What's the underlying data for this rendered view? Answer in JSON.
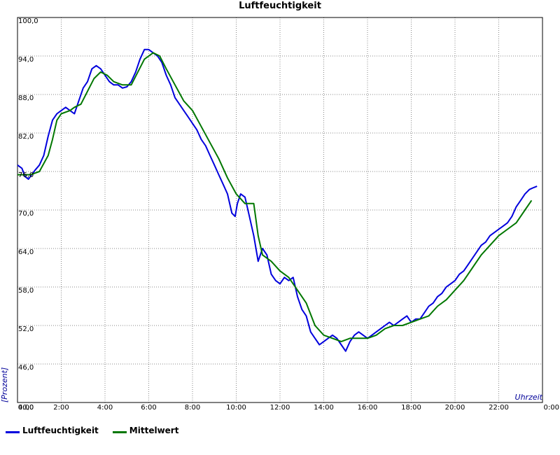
{
  "chart_data": {
    "type": "line",
    "title": "Luftfeuchtigkeit",
    "xlabel": "Uhrzeit",
    "ylabel": "[Prozent]",
    "x_ticks": [
      {
        "v": 0,
        "label": "0:00"
      },
      {
        "v": 2,
        "label": "2:00"
      },
      {
        "v": 4,
        "label": "4:00"
      },
      {
        "v": 6,
        "label": "6:00"
      },
      {
        "v": 8,
        "label": "8:00"
      },
      {
        "v": 10,
        "label": "10:00"
      },
      {
        "v": 12,
        "label": "12:00"
      },
      {
        "v": 14,
        "label": "14:00"
      },
      {
        "v": 16,
        "label": "16:00"
      },
      {
        "v": 18,
        "label": "18:00"
      },
      {
        "v": 20,
        "label": "20:00"
      },
      {
        "v": 22,
        "label": "22:00"
      },
      {
        "v": 24,
        "label": "0:00"
      }
    ],
    "y_ticks": [
      {
        "v": 40,
        "label": "40,0"
      },
      {
        "v": 46,
        "label": "46,0"
      },
      {
        "v": 52,
        "label": "52,0"
      },
      {
        "v": 58,
        "label": "58,0"
      },
      {
        "v": 64,
        "label": "64,0"
      },
      {
        "v": 70,
        "label": "70,0"
      },
      {
        "v": 76,
        "label": "76,0"
      },
      {
        "v": 82,
        "label": "82,0"
      },
      {
        "v": 88,
        "label": "88,0"
      },
      {
        "v": 94,
        "label": "94,0"
      },
      {
        "v": 100,
        "label": "100,0"
      }
    ],
    "xlim": [
      0,
      24
    ],
    "ylim": [
      40,
      100
    ],
    "grid": true,
    "legend_position": "bottom-left",
    "series": [
      {
        "name": "Luftfeuchtigkeit",
        "color": "#0000dd",
        "points": [
          [
            0,
            77.0
          ],
          [
            0.2,
            76.5
          ],
          [
            0.35,
            75.2
          ],
          [
            0.5,
            74.8
          ],
          [
            0.65,
            75.5
          ],
          [
            0.8,
            76.2
          ],
          [
            1.0,
            77.0
          ],
          [
            1.2,
            78.5
          ],
          [
            1.4,
            81.5
          ],
          [
            1.6,
            84.0
          ],
          [
            1.8,
            85.0
          ],
          [
            2.0,
            85.5
          ],
          [
            2.2,
            86.0
          ],
          [
            2.4,
            85.5
          ],
          [
            2.6,
            85.0
          ],
          [
            2.8,
            87.0
          ],
          [
            3.0,
            89.0
          ],
          [
            3.2,
            90.0
          ],
          [
            3.4,
            92.0
          ],
          [
            3.6,
            92.5
          ],
          [
            3.8,
            92.0
          ],
          [
            4.0,
            91.0
          ],
          [
            4.2,
            90.0
          ],
          [
            4.4,
            89.5
          ],
          [
            4.6,
            89.5
          ],
          [
            4.8,
            89.0
          ],
          [
            5.0,
            89.2
          ],
          [
            5.2,
            90.0
          ],
          [
            5.4,
            91.5
          ],
          [
            5.6,
            93.5
          ],
          [
            5.8,
            95.0
          ],
          [
            6.0,
            95.0
          ],
          [
            6.2,
            94.5
          ],
          [
            6.4,
            94.0
          ],
          [
            6.6,
            93.0
          ],
          [
            6.8,
            91.0
          ],
          [
            7.0,
            89.5
          ],
          [
            7.2,
            87.5
          ],
          [
            7.4,
            86.5
          ],
          [
            7.6,
            85.5
          ],
          [
            7.8,
            84.5
          ],
          [
            8.0,
            83.5
          ],
          [
            8.2,
            82.5
          ],
          [
            8.4,
            81.0
          ],
          [
            8.6,
            80.0
          ],
          [
            8.8,
            78.5
          ],
          [
            9.0,
            77.0
          ],
          [
            9.2,
            75.5
          ],
          [
            9.4,
            74.0
          ],
          [
            9.6,
            72.5
          ],
          [
            9.8,
            69.5
          ],
          [
            9.95,
            69.0
          ],
          [
            10.05,
            71.0
          ],
          [
            10.2,
            72.5
          ],
          [
            10.4,
            72.0
          ],
          [
            10.6,
            69.0
          ],
          [
            10.8,
            66.0
          ],
          [
            11.0,
            62.0
          ],
          [
            11.2,
            64.0
          ],
          [
            11.4,
            63.0
          ],
          [
            11.6,
            60.0
          ],
          [
            11.8,
            59.0
          ],
          [
            12.0,
            58.5
          ],
          [
            12.2,
            59.5
          ],
          [
            12.4,
            59.0
          ],
          [
            12.6,
            59.5
          ],
          [
            12.8,
            56.5
          ],
          [
            13.0,
            54.5
          ],
          [
            13.2,
            53.5
          ],
          [
            13.4,
            51.0
          ],
          [
            13.6,
            50.0
          ],
          [
            13.8,
            49.0
          ],
          [
            14.0,
            49.5
          ],
          [
            14.2,
            50.0
          ],
          [
            14.4,
            50.5
          ],
          [
            14.6,
            50.0
          ],
          [
            14.8,
            49.0
          ],
          [
            15.0,
            48.0
          ],
          [
            15.2,
            49.5
          ],
          [
            15.4,
            50.5
          ],
          [
            15.6,
            51.0
          ],
          [
            15.8,
            50.5
          ],
          [
            16.0,
            50.0
          ],
          [
            16.2,
            50.5
          ],
          [
            16.4,
            51.0
          ],
          [
            16.6,
            51.5
          ],
          [
            16.8,
            52.0
          ],
          [
            17.0,
            52.5
          ],
          [
            17.2,
            52.0
          ],
          [
            17.4,
            52.5
          ],
          [
            17.6,
            53.0
          ],
          [
            17.8,
            53.5
          ],
          [
            18.0,
            52.5
          ],
          [
            18.2,
            53.0
          ],
          [
            18.4,
            53.0
          ],
          [
            18.6,
            54.0
          ],
          [
            18.8,
            55.0
          ],
          [
            19.0,
            55.5
          ],
          [
            19.2,
            56.5
          ],
          [
            19.4,
            57.0
          ],
          [
            19.6,
            58.0
          ],
          [
            19.8,
            58.5
          ],
          [
            20.0,
            59.0
          ],
          [
            20.2,
            60.0
          ],
          [
            20.4,
            60.5
          ],
          [
            20.6,
            61.5
          ],
          [
            20.8,
            62.5
          ],
          [
            21.0,
            63.5
          ],
          [
            21.2,
            64.5
          ],
          [
            21.4,
            65.0
          ],
          [
            21.6,
            66.0
          ],
          [
            21.8,
            66.5
          ],
          [
            22.0,
            67.0
          ],
          [
            22.2,
            67.5
          ],
          [
            22.4,
            68.0
          ],
          [
            22.6,
            69.0
          ],
          [
            22.8,
            70.5
          ],
          [
            23.0,
            71.5
          ],
          [
            23.2,
            72.5
          ],
          [
            23.4,
            73.2
          ],
          [
            23.6,
            73.5
          ],
          [
            23.75,
            73.7
          ]
        ]
      },
      {
        "name": "Mittelwert",
        "color": "#007700",
        "points": [
          [
            0,
            75.5
          ],
          [
            0.6,
            75.5
          ],
          [
            1.0,
            76.0
          ],
          [
            1.4,
            78.5
          ],
          [
            1.6,
            81.0
          ],
          [
            1.8,
            84.0
          ],
          [
            2.0,
            85.0
          ],
          [
            2.4,
            85.5
          ],
          [
            2.6,
            86.0
          ],
          [
            2.9,
            86.5
          ],
          [
            3.2,
            88.5
          ],
          [
            3.5,
            90.5
          ],
          [
            3.8,
            91.5
          ],
          [
            4.1,
            91.0
          ],
          [
            4.4,
            90.0
          ],
          [
            4.8,
            89.5
          ],
          [
            5.2,
            89.5
          ],
          [
            5.5,
            91.5
          ],
          [
            5.8,
            93.5
          ],
          [
            6.0,
            94.0
          ],
          [
            6.2,
            94.5
          ],
          [
            6.5,
            94.0
          ],
          [
            6.8,
            92.0
          ],
          [
            7.2,
            89.5
          ],
          [
            7.6,
            87.0
          ],
          [
            8.0,
            85.5
          ],
          [
            8.4,
            83.0
          ],
          [
            8.8,
            80.5
          ],
          [
            9.2,
            78.0
          ],
          [
            9.6,
            75.0
          ],
          [
            10.0,
            72.5
          ],
          [
            10.4,
            71.0
          ],
          [
            10.8,
            71.0
          ],
          [
            11.0,
            66.0
          ],
          [
            11.2,
            63.0
          ],
          [
            11.6,
            62.0
          ],
          [
            12.0,
            60.5
          ],
          [
            12.4,
            59.5
          ],
          [
            12.8,
            57.5
          ],
          [
            13.2,
            55.5
          ],
          [
            13.6,
            52.0
          ],
          [
            14.0,
            50.5
          ],
          [
            14.4,
            50.0
          ],
          [
            14.8,
            49.5
          ],
          [
            15.2,
            50.0
          ],
          [
            15.6,
            50.0
          ],
          [
            16.0,
            50.0
          ],
          [
            16.4,
            50.5
          ],
          [
            16.8,
            51.5
          ],
          [
            17.2,
            52.0
          ],
          [
            17.6,
            52.0
          ],
          [
            18.0,
            52.5
          ],
          [
            18.4,
            53.0
          ],
          [
            18.8,
            53.5
          ],
          [
            19.2,
            55.0
          ],
          [
            19.6,
            56.0
          ],
          [
            20.0,
            57.5
          ],
          [
            20.4,
            59.0
          ],
          [
            20.8,
            61.0
          ],
          [
            21.2,
            63.0
          ],
          [
            21.6,
            64.5
          ],
          [
            22.0,
            66.0
          ],
          [
            22.4,
            67.0
          ],
          [
            22.8,
            68.0
          ],
          [
            23.2,
            70.0
          ],
          [
            23.5,
            71.5
          ]
        ]
      }
    ]
  }
}
